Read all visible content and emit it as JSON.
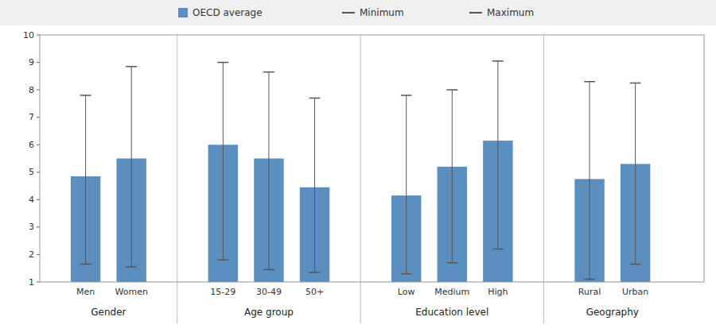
{
  "chart_data": {
    "type": "bar",
    "categories": [
      "Men",
      "Women",
      "15-29",
      "30-49",
      "50+",
      "Low",
      "Medium",
      "High",
      "Rural",
      "Urban"
    ],
    "groups": [
      {
        "label": "Gender",
        "size": 2
      },
      {
        "label": "Age group",
        "size": 3
      },
      {
        "label": "Education level",
        "size": 3
      },
      {
        "label": "Geography",
        "size": 2
      }
    ],
    "series": [
      {
        "name": "OECD average",
        "type": "bar",
        "color": "#5B8FBF",
        "values": [
          4.85,
          5.5,
          6.0,
          5.5,
          4.45,
          4.15,
          5.2,
          6.15,
          4.75,
          5.3
        ]
      },
      {
        "name": "Minimum",
        "type": "marker",
        "marker": "dash",
        "color": "#555555",
        "values": [
          1.65,
          1.55,
          1.8,
          1.45,
          1.35,
          1.3,
          1.7,
          2.2,
          1.1,
          1.65
        ]
      },
      {
        "name": "Maximum",
        "type": "marker",
        "marker": "dash",
        "color": "#555555",
        "values": [
          7.8,
          8.85,
          9.0,
          8.65,
          7.7,
          7.8,
          8.0,
          9.05,
          8.3,
          8.25
        ]
      }
    ],
    "ylim": [
      1,
      10
    ],
    "yticks": [
      1,
      2,
      3,
      4,
      5,
      6,
      7,
      8,
      9,
      10
    ],
    "grid": false,
    "legend": "top"
  }
}
